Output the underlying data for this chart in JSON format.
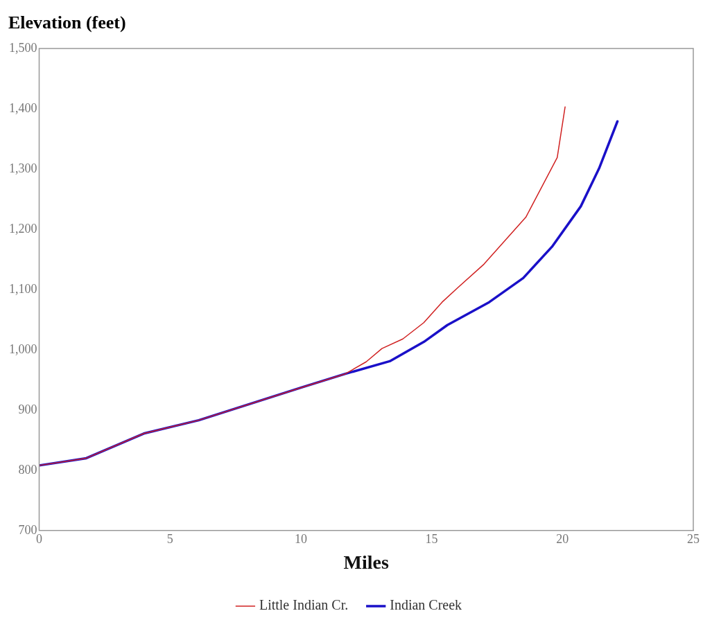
{
  "chart_data": {
    "type": "line",
    "ylabel": "Elevation (feet)",
    "xlabel": "Miles",
    "xlim": [
      0,
      25
    ],
    "xticks": [
      0,
      5,
      10,
      15,
      20,
      25
    ],
    "ylim": [
      700,
      1500
    ],
    "yticks": [
      700,
      800,
      900,
      {
        "value": 1000,
        "label": "1,000"
      },
      {
        "value": 1100,
        "label": "1,100"
      },
      {
        "value": 1200,
        "label": "1,200"
      },
      {
        "value": 1300,
        "label": "1,300"
      },
      {
        "value": 1400,
        "label": "1,400"
      },
      {
        "value": 1500,
        "label": "1,500"
      }
    ],
    "grid": false,
    "legend": "bottom",
    "marker": "none",
    "line_style": "solid",
    "series": [
      {
        "name": "Little Indian Cr.",
        "color": "#d02020",
        "x": [
          0,
          1.8,
          4.0,
          6.1,
          10.0,
          11.7,
          12.5,
          13.1,
          13.9,
          14.7,
          15.4,
          16.0,
          17.0,
          18.6,
          19.8,
          20.1
        ],
        "values": [
          808,
          820,
          861,
          883,
          937,
          960,
          980,
          1002,
          1018,
          1045,
          1079,
          1103,
          1142,
          1220,
          1319,
          1403
        ]
      },
      {
        "name": "Indian Creek",
        "color": "#1a10c8",
        "x": [
          0,
          1.8,
          4.0,
          6.1,
          10.0,
          11.7,
          13.4,
          14.7,
          15.6,
          17.2,
          18.5,
          19.6,
          20.7,
          21.4,
          22.1
        ],
        "values": [
          808,
          820,
          861,
          883,
          937,
          960,
          981,
          1013,
          1041,
          1079,
          1119,
          1171,
          1238,
          1301,
          1379
        ]
      }
    ]
  }
}
